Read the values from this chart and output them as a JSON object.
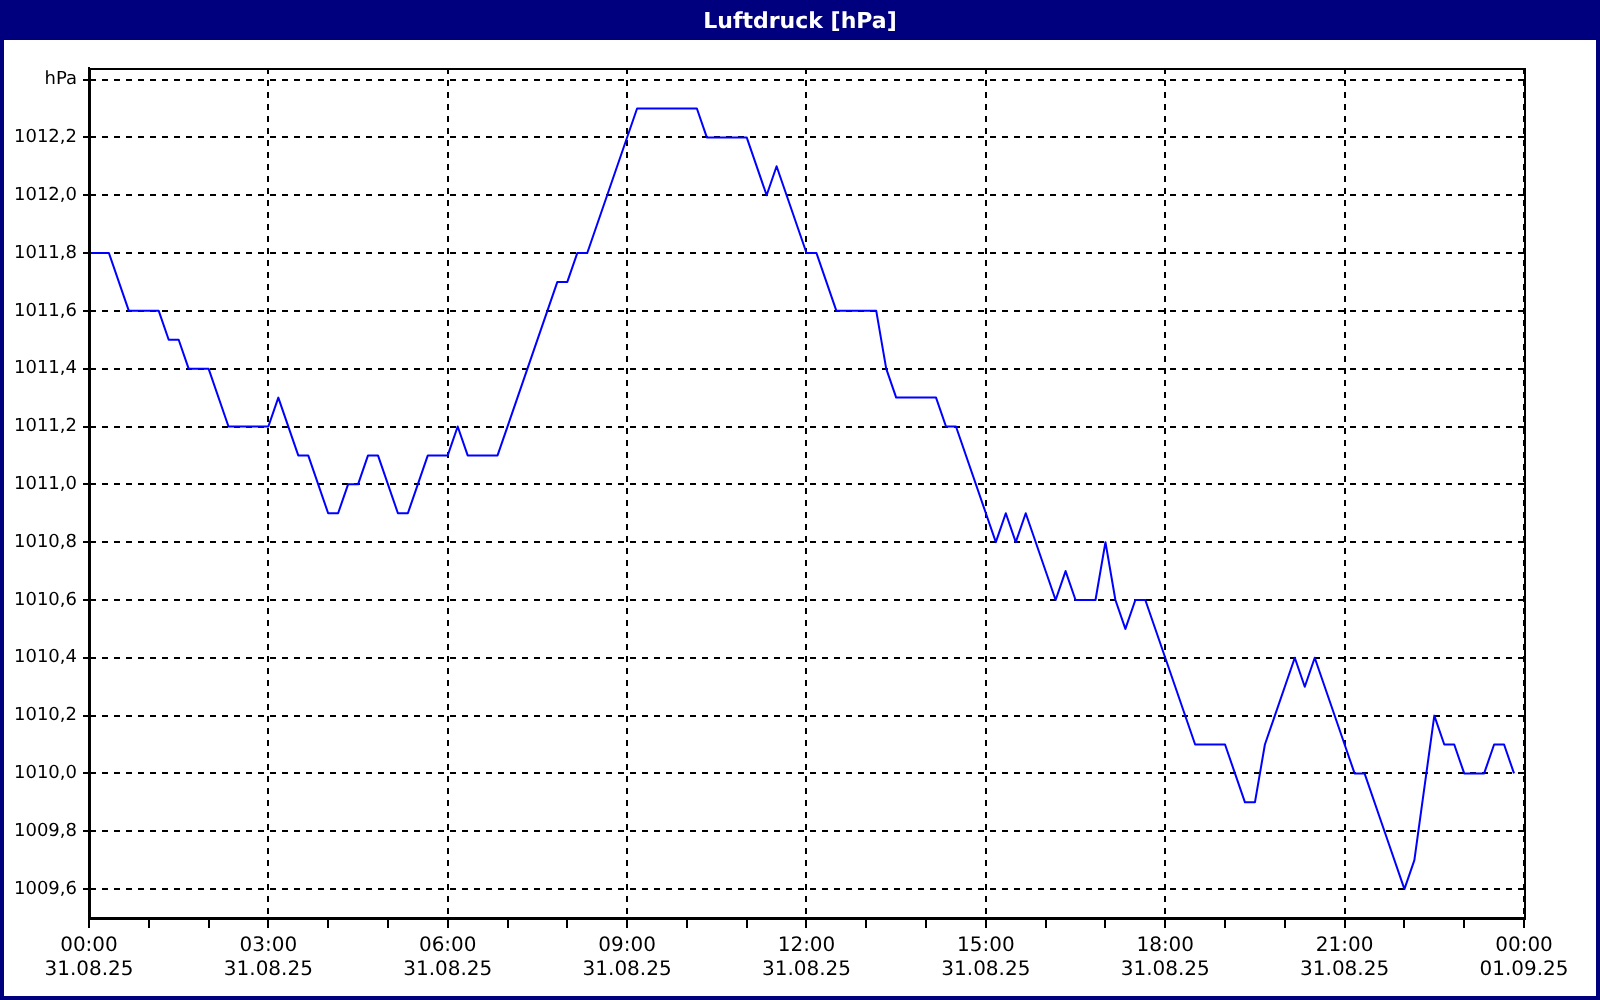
{
  "chart_data": {
    "type": "line",
    "title": "Luftdruck [hPa]",
    "x": [
      "--08-31T00:00",
      "--08-31T00:20",
      "--08-31T00:40",
      "--08-31T01:10",
      "--08-31T01:20",
      "--08-31T01:30",
      "--08-31T01:40",
      "--08-31T02:00",
      "--08-31T02:20",
      "--08-31T03:00",
      "--08-31T03:10",
      "--08-31T03:30",
      "--08-31T03:40",
      "--08-31T04:00",
      "--08-31T04:10",
      "--08-31T04:20",
      "--08-31T04:30",
      "--08-31T04:40",
      "--08-31T04:50",
      "--08-31T05:10",
      "--08-31T05:20",
      "--08-31T05:40",
      "--08-31T06:00",
      "--08-31T06:10",
      "--08-31T06:20",
      "--08-31T06:50",
      "--08-31T07:20",
      "--08-31T07:50",
      "--08-31T08:00",
      "--08-31T08:10",
      "--08-31T08:20",
      "--08-31T09:10",
      "--08-31T10:10",
      "--08-31T10:20",
      "--08-31T11:00",
      "--08-31T11:20",
      "--08-31T11:30",
      "--08-31T12:00",
      "--08-31T12:10",
      "--08-31T12:30",
      "--08-31T13:10",
      "--08-31T13:20",
      "--08-31T13:30",
      "--08-31T14:10",
      "--08-31T14:20",
      "--08-31T14:30",
      "--08-31T15:00",
      "--08-31T15:10",
      "--08-31T15:20",
      "--08-31T15:30",
      "--08-31T15:40",
      "--08-31T16:10",
      "--08-31T16:20",
      "--08-31T16:30",
      "--08-31T16:50",
      "--08-31T17:00",
      "--08-31T17:10",
      "--08-31T17:20",
      "--08-31T17:30",
      "--08-31T17:40",
      "--08-31T18:00",
      "--08-31T18:30",
      "--08-31T19:00",
      "--08-31T19:20",
      "--08-31T19:30",
      "--08-31T19:40",
      "--08-31T19:50",
      "--08-31T20:10",
      "--08-31T20:20",
      "--08-31T20:30",
      "--08-31T21:00",
      "--08-31T21:10",
      "--08-31T21:20",
      "--08-31T21:40",
      "--08-31T22:00",
      "--08-31T22:10",
      "--08-31T22:30",
      "--08-31T22:40",
      "--08-31T22:50",
      "--08-31T23:00",
      "--08-31T23:20",
      "--08-31T23:30",
      "--08-31T23:40",
      "--08-31T23:50"
    ],
    "series": [
      {
        "color": "#0000ff",
        "values": [
          1011.8,
          1011.8,
          1011.6,
          1011.6,
          1011.5,
          1011.5,
          1011.4,
          1011.4,
          1011.2,
          1011.2,
          1011.3,
          1011.1,
          1011.1,
          1010.9,
          1010.9,
          1011.0,
          1011.0,
          1011.1,
          1011.1,
          1010.9,
          1010.9,
          1011.1,
          1011.1,
          1011.2,
          1011.1,
          1011.1,
          1011.4,
          1011.7,
          1011.7,
          1011.8,
          1011.8,
          1012.3,
          1012.3,
          1012.2,
          1012.2,
          1012.0,
          1012.1,
          1011.8,
          1011.8,
          1011.6,
          1011.6,
          1011.4,
          1011.3,
          1011.3,
          1011.2,
          1011.2,
          1010.9,
          1010.8,
          1010.9,
          1010.8,
          1010.9,
          1010.6,
          1010.7,
          1010.6,
          1010.6,
          1010.8,
          1010.6,
          1010.5,
          1010.6,
          1010.6,
          1010.4,
          1010.1,
          1010.1,
          1009.9,
          1009.9,
          1010.1,
          1010.2,
          1010.4,
          1010.3,
          1010.4,
          1010.1,
          1010.0,
          1010.0,
          1009.8,
          1009.6,
          1009.7,
          1010.2,
          1010.1,
          1010.1,
          1010.0,
          1010.0,
          1010.1,
          1010.1,
          1010.0
        ]
      }
    ],
    "xlim": [
      "--08-31T00:00",
      "--09-01T00:00"
    ],
    "xticks": [
      {
        "value": "--08-31T00:00",
        "label": "00:00\n31.08.25"
      },
      {
        "value": "--08-31T01:00",
        "label": null
      },
      {
        "value": "--08-31T02:00",
        "label": null
      },
      {
        "value": "--08-31T03:00",
        "label": "03:00\n31.08.25"
      },
      {
        "value": "--08-31T04:00",
        "label": null
      },
      {
        "value": "--08-31T05:00",
        "label": null
      },
      {
        "value": "--08-31T06:00",
        "label": "06:00\n31.08.25"
      },
      {
        "value": "--08-31T07:00",
        "label": null
      },
      {
        "value": "--08-31T08:00",
        "label": null
      },
      {
        "value": "--08-31T09:00",
        "label": "09:00\n31.08.25"
      },
      {
        "value": "--08-31T10:00",
        "label": null
      },
      {
        "value": "--08-31T11:00",
        "label": null
      },
      {
        "value": "--08-31T12:00",
        "label": "12:00\n31.08.25"
      },
      {
        "value": "--08-31T13:00",
        "label": null
      },
      {
        "value": "--08-31T14:00",
        "label": null
      },
      {
        "value": "--08-31T15:00",
        "label": "15:00\n31.08.25"
      },
      {
        "value": "--08-31T16:00",
        "label": null
      },
      {
        "value": "--08-31T17:00",
        "label": null
      },
      {
        "value": "--08-31T18:00",
        "label": "18:00\n31.08.25"
      },
      {
        "value": "--08-31T19:00",
        "label": null
      },
      {
        "value": "--08-31T20:00",
        "label": null
      },
      {
        "value": "--08-31T21:00",
        "label": "21:00\n31.08.25"
      },
      {
        "value": "--08-31T22:00",
        "label": null
      },
      {
        "value": "--08-31T23:00",
        "label": null
      },
      {
        "value": "--09-01T00:00",
        "label": "00:00\n01.09.25"
      }
    ],
    "ylim": [
      1009.5,
      1012.44
    ],
    "yticks": [
      {
        "value": 1009.6,
        "label": "1009,6"
      },
      {
        "value": 1009.8,
        "label": "1009,8"
      },
      {
        "value": 1010.0,
        "label": "1010,0"
      },
      {
        "value": 1010.2,
        "label": "1010,2"
      },
      {
        "value": 1010.4,
        "label": "1010,4"
      },
      {
        "value": 1010.6,
        "label": "1010,6"
      },
      {
        "value": 1010.8,
        "label": "1010,8"
      },
      {
        "value": 1011.0,
        "label": "1011,0"
      },
      {
        "value": 1011.2,
        "label": "1011,2"
      },
      {
        "value": 1011.4,
        "label": "1011,4"
      },
      {
        "value": 1011.6,
        "label": "1011,6"
      },
      {
        "value": 1011.8,
        "label": "1011,8"
      },
      {
        "value": 1012.0,
        "label": "1012,0"
      },
      {
        "value": 1012.2,
        "label": "1012,2"
      },
      {
        "value": 1012.4,
        "label": "hPa"
      }
    ],
    "grid": true,
    "legend": false,
    "marker": "none",
    "line_style": "solid"
  }
}
